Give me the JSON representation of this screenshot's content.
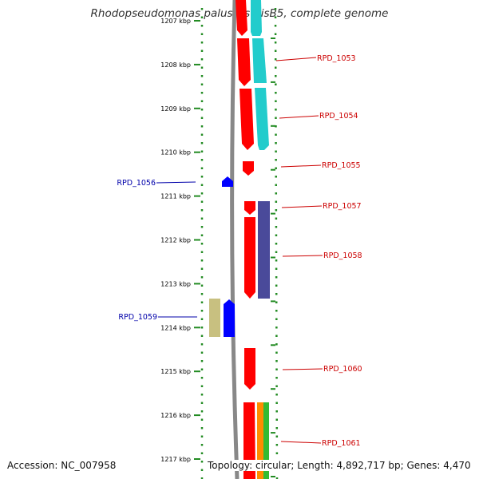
{
  "title": "Rhodopseudomonas palustris BisB5, complete genome",
  "footer": {
    "accession": "Accession: NC_007958",
    "summary": "Topology: circular; Length: 4,892,717 bp; Genes: 4,470"
  },
  "ruler": {
    "ticks": [
      {
        "label": "1207 kbp",
        "kbp": 1207
      },
      {
        "label": "1208 kbp",
        "kbp": 1208
      },
      {
        "label": "1209 kbp",
        "kbp": 1209
      },
      {
        "label": "1210 kbp",
        "kbp": 1210
      },
      {
        "label": "1211 kbp",
        "kbp": 1211
      },
      {
        "label": "1212 kbp",
        "kbp": 1212
      },
      {
        "label": "1213 kbp",
        "kbp": 1213
      },
      {
        "label": "1214 kbp",
        "kbp": 1214
      },
      {
        "label": "1215 kbp",
        "kbp": 1215
      },
      {
        "label": "1216 kbp",
        "kbp": 1216
      },
      {
        "label": "1217 kbp",
        "kbp": 1217
      }
    ]
  },
  "colors": {
    "forward_cds": "#ff0000",
    "reverse_cds": "#0000ff",
    "backbone": "#888888",
    "ruler": "#228b22",
    "forward_label": "#cc0000",
    "reverse_label": "#0000aa",
    "cyan": "#22cccc",
    "slate": "#4a4a9a",
    "khaki": "#c8c080",
    "orange": "#ff8c00",
    "green": "#33bb33"
  },
  "genes": [
    {
      "label": "RPD_1053",
      "strand": "forward"
    },
    {
      "label": "RPD_1054",
      "strand": "forward"
    },
    {
      "label": "RPD_1055",
      "strand": "forward"
    },
    {
      "label": "RPD_1056",
      "strand": "reverse"
    },
    {
      "label": "RPD_1057",
      "strand": "forward"
    },
    {
      "label": "RPD_1058",
      "strand": "forward"
    },
    {
      "label": "RPD_1059",
      "strand": "reverse"
    },
    {
      "label": "RPD_1060",
      "strand": "forward"
    },
    {
      "label": "RPD_1061",
      "strand": "forward"
    }
  ]
}
